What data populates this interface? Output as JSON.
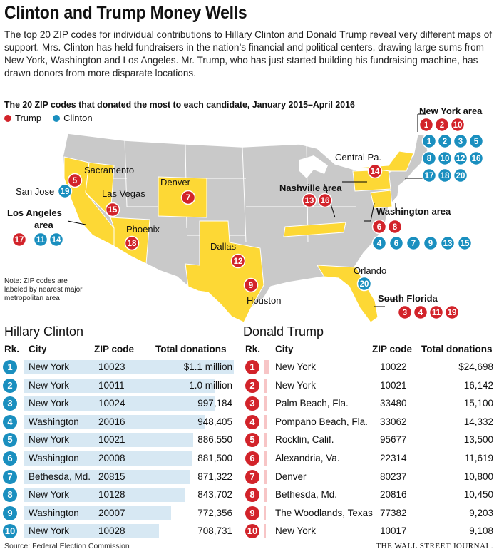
{
  "title": "Clinton and Trump Money Wells",
  "intro": "The top 20 ZIP codes for individual contributions to Hillary Clinton and Donald Trump reveal very different maps of support. Mrs. Clinton has held fundraisers in the nation’s financial and political centers, drawing large sums from New York, Washington and Los Angeles. Mr. Trump, who has just started building his fundraising machine, has drawn donors from more disparate locations.",
  "subtitle": "The 20 ZIP codes that donated the most to each candidate, January 2015–April 2016",
  "legend": {
    "trump": "Trump",
    "clinton": "Clinton"
  },
  "colors": {
    "trump": "#d2232a",
    "clinton": "#1a8fbf",
    "highlight": "#fdd835",
    "land": "#c9c9c9",
    "bar": "#d7e8f3",
    "trump_bar": "#f7c5c6"
  },
  "note": "Note: ZIP codes are labeled by nearest major metropolitan area",
  "map": {
    "labels": {
      "ny": "New York area",
      "centralpa": "Central Pa.",
      "nashville": "Nashville area",
      "washington": "Washington area",
      "sacramento": "Sacramento",
      "sanjose": "San Jose",
      "lasvegas": "Las Vegas",
      "denver": "Denver",
      "phoenix": "Phoenix",
      "la_line1": "Los Angeles",
      "la_line2": "area",
      "dallas": "Dallas",
      "houston": "Houston",
      "orlando": "Orlando",
      "southflorida": "South Florida"
    },
    "markers": {
      "ny_trump": [
        "1",
        "2",
        "10"
      ],
      "ny_clinton": [
        "1",
        "2",
        "3",
        "5",
        "8",
        "10",
        "12",
        "16",
        "17",
        "18",
        "20"
      ],
      "centralpa": [
        "14"
      ],
      "nashville": [
        "13",
        "16"
      ],
      "wash_trump": [
        "6",
        "8"
      ],
      "wash_clinton": [
        "4",
        "6",
        "7",
        "9",
        "13",
        "15"
      ],
      "sacramento": [
        "5"
      ],
      "sanjose": [
        "19"
      ],
      "lasvegas": [
        "15"
      ],
      "denver": [
        "7"
      ],
      "phoenix": [
        "18"
      ],
      "la_trump": [
        "17"
      ],
      "la_clinton": [
        "11",
        "14"
      ],
      "dallas": [
        "12"
      ],
      "houston": [
        "9"
      ],
      "orlando": [
        "20"
      ],
      "southflorida": [
        "3",
        "4",
        "11",
        "19"
      ]
    }
  },
  "chart_data": [
    {
      "type": "table",
      "title": "Hillary Clinton",
      "columns": [
        "Rk.",
        "City",
        "ZIP code",
        "Total donations"
      ],
      "rows": [
        {
          "rank": "1",
          "city": "New York",
          "zip": "10023",
          "total": "$1.1 million",
          "value": 1100000
        },
        {
          "rank": "2",
          "city": "New York",
          "zip": "10011",
          "total": "1.0 million",
          "value": 1000000
        },
        {
          "rank": "3",
          "city": "New York",
          "zip": "10024",
          "total": "997,184",
          "value": 997184
        },
        {
          "rank": "4",
          "city": "Washington",
          "zip": "20016",
          "total": "948,405",
          "value": 948405
        },
        {
          "rank": "5",
          "city": "New York",
          "zip": "10021",
          "total": "886,550",
          "value": 886550
        },
        {
          "rank": "6",
          "city": "Washington",
          "zip": "20008",
          "total": "881,500",
          "value": 881500
        },
        {
          "rank": "7",
          "city": "Bethesda, Md.",
          "zip": "20815",
          "total": "871,322",
          "value": 871322
        },
        {
          "rank": "8",
          "city": "New York",
          "zip": "10128",
          "total": "843,702",
          "value": 843702
        },
        {
          "rank": "9",
          "city": "Washington",
          "zip": "20007",
          "total": "772,356",
          "value": 772356
        },
        {
          "rank": "10",
          "city": "New York",
          "zip": "10028",
          "total": "708,731",
          "value": 708731
        }
      ]
    },
    {
      "type": "table",
      "title": "Donald Trump",
      "columns": [
        "Rk.",
        "City",
        "ZIP code",
        "Total donations"
      ],
      "rows": [
        {
          "rank": "1",
          "city": "New York",
          "zip": "10022",
          "total": "$24,698",
          "value": 24698
        },
        {
          "rank": "2",
          "city": "New York",
          "zip": "10021",
          "total": "16,142",
          "value": 16142
        },
        {
          "rank": "3",
          "city": "Palm Beach, Fla.",
          "zip": "33480",
          "total": "15,100",
          "value": 15100
        },
        {
          "rank": "4",
          "city": "Pompano Beach, Fla.",
          "zip": "33062",
          "total": "14,332",
          "value": 14332
        },
        {
          "rank": "5",
          "city": "Rocklin, Calif.",
          "zip": "95677",
          "total": "13,500",
          "value": 13500
        },
        {
          "rank": "6",
          "city": "Alexandria, Va.",
          "zip": "22314",
          "total": "11,619",
          "value": 11619
        },
        {
          "rank": "7",
          "city": "Denver",
          "zip": "80237",
          "total": "10,800",
          "value": 10800
        },
        {
          "rank": "8",
          "city": "Bethesda, Md.",
          "zip": "20816",
          "total": "10,450",
          "value": 10450
        },
        {
          "rank": "9",
          "city": "The Woodlands, Texas",
          "zip": "77382",
          "total": "9,203",
          "value": 9203
        },
        {
          "rank": "10",
          "city": "New York",
          "zip": "10017",
          "total": "9,108",
          "value": 9108
        }
      ]
    }
  ],
  "source": "Source: Federal Election Commission",
  "brand": "THE WALL STREET JOURNAL."
}
